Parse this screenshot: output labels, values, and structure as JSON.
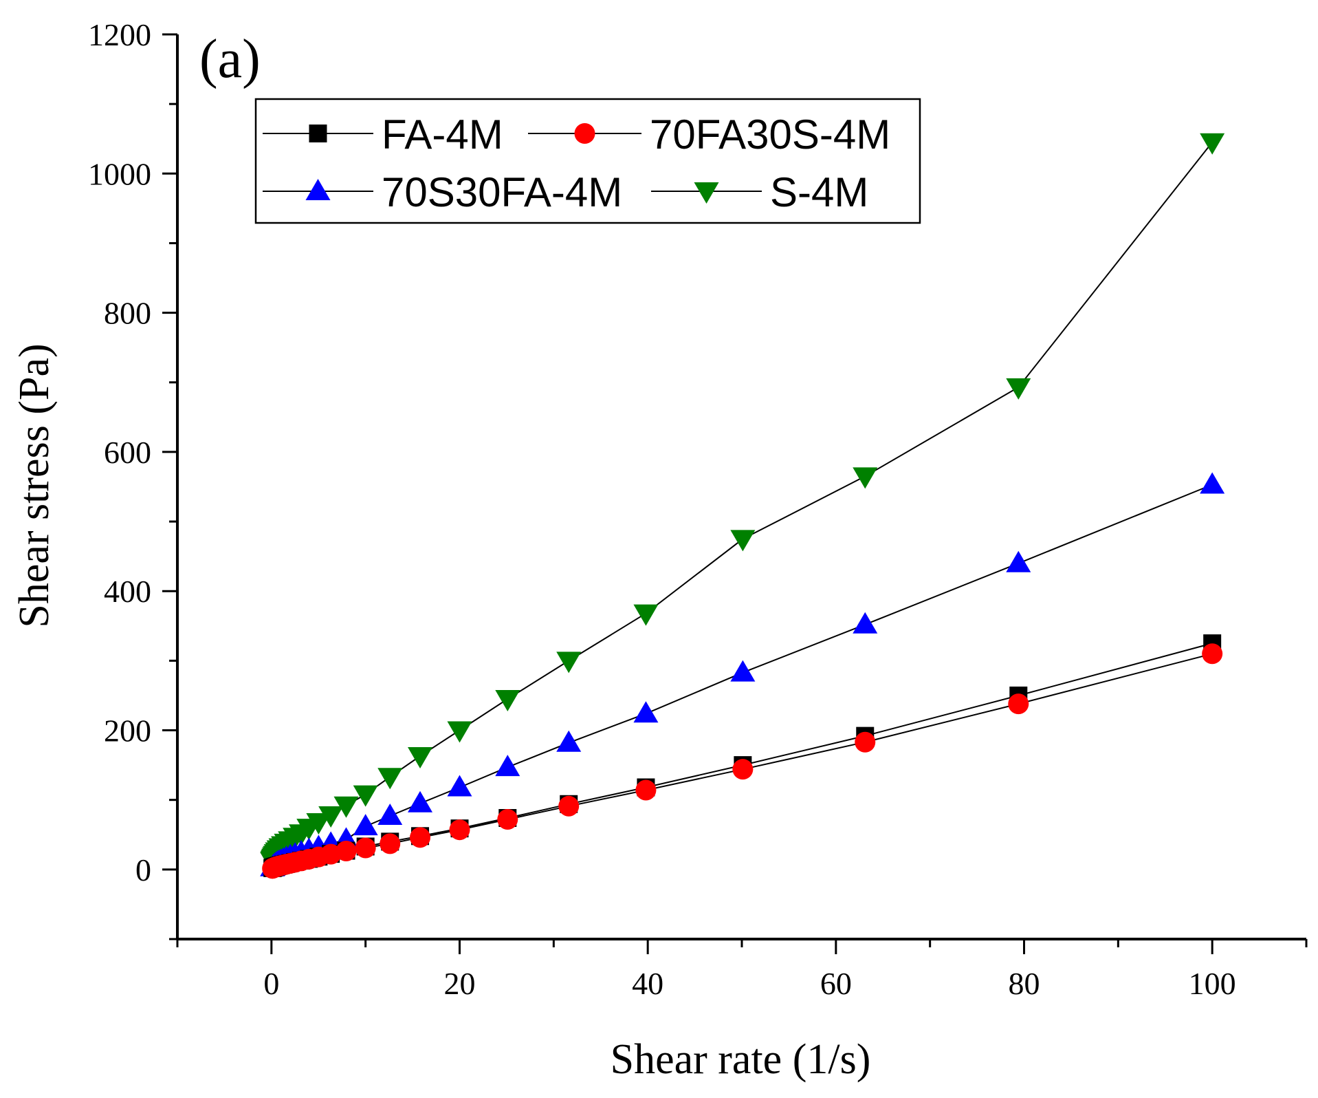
{
  "chart_data": {
    "type": "line",
    "panel_label": "(a)",
    "title": "",
    "xlabel": "Shear rate (1/s)",
    "ylabel": "Shear stress (Pa)",
    "xlim": [
      -10,
      110
    ],
    "ylim": [
      -100,
      1200
    ],
    "xticks": [
      0,
      20,
      40,
      60,
      80,
      100
    ],
    "yticks": [
      0,
      200,
      400,
      600,
      800,
      1000,
      1200
    ],
    "grid": false,
    "legend_position": "top-left",
    "x": [
      0.1,
      0.126,
      0.158,
      0.2,
      0.251,
      0.316,
      0.398,
      0.501,
      0.631,
      0.794,
      1.0,
      1.26,
      1.58,
      2.0,
      2.51,
      3.16,
      3.98,
      5.01,
      6.31,
      7.94,
      10.0,
      12.6,
      15.8,
      20.0,
      25.1,
      31.6,
      39.8,
      50.1,
      63.1,
      79.4,
      100.0
    ],
    "series": [
      {
        "name": "FA-4M",
        "color": "#000000",
        "marker": "square",
        "values": [
          2,
          2.2,
          2.4,
          2.7,
          3,
          3.4,
          3.8,
          4.3,
          4.8,
          5.5,
          6.2,
          7,
          8,
          9.3,
          10.8,
          12.8,
          15.3,
          18.5,
          22.5,
          27,
          33,
          40,
          48,
          59,
          74,
          94,
          118,
          150,
          192,
          250,
          325
        ]
      },
      {
        "name": "70FA30S-4M",
        "color": "#ff0000",
        "marker": "circle",
        "values": [
          1.5,
          1.7,
          1.9,
          2.2,
          2.5,
          2.9,
          3.3,
          3.8,
          4.3,
          5,
          5.7,
          6.5,
          7.5,
          8.8,
          10.3,
          12.3,
          14.8,
          18,
          22,
          26.5,
          31,
          37,
          46,
          57,
          72,
          91,
          114,
          144,
          183,
          238,
          310
        ]
      },
      {
        "name": "70S30FA-4M",
        "color": "#0000ff",
        "marker": "triangle-up",
        "values": [
          3,
          3.5,
          4,
          4.6,
          5.3,
          6.2,
          7.2,
          8.3,
          9.6,
          11,
          12.5,
          14.3,
          16.5,
          19,
          21.5,
          24.5,
          28,
          32,
          37,
          43,
          62,
          77,
          95,
          118,
          147,
          182,
          224,
          283,
          352,
          440,
          553
        ]
      },
      {
        "name": "S-4M",
        "color": "#008000",
        "marker": "triangle-down",
        "values": [
          12,
          13,
          14,
          15.5,
          17,
          19,
          21,
          23.5,
          26,
          29,
          32,
          35,
          38.5,
          42,
          47,
          52,
          60,
          68,
          78,
          92,
          108,
          133,
          163,
          200,
          245,
          300,
          368,
          475,
          565,
          693,
          1045
        ]
      }
    ]
  }
}
